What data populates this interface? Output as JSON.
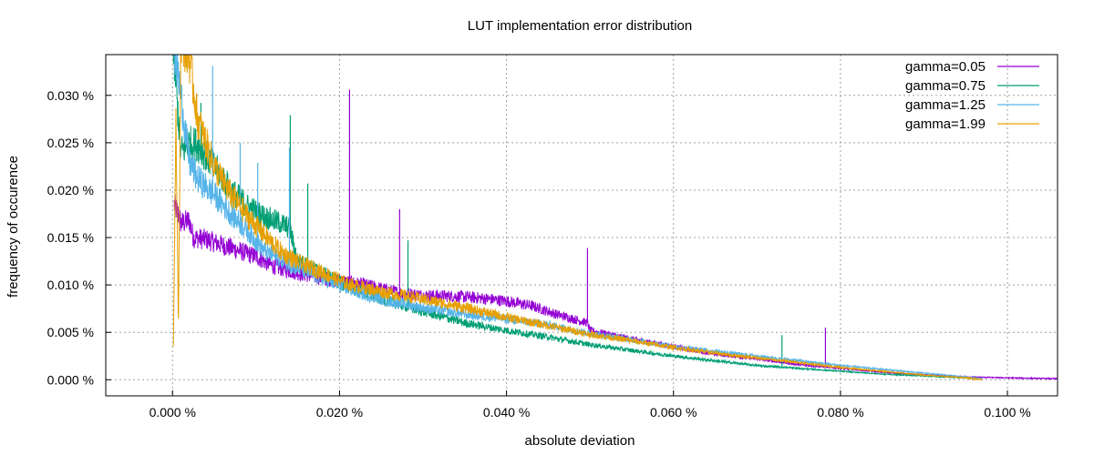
{
  "chart_data": {
    "type": "line",
    "title": "LUT implementation error distribution",
    "xlabel": "absolute deviation",
    "ylabel": "frequency of occurence",
    "xlim": [
      -0.008,
      0.106
    ],
    "ylim": [
      -0.0017,
      0.0343
    ],
    "grid": true,
    "legend_position": "top-right",
    "x_ticks": [
      {
        "value": 0.0,
        "label": "0.000 %"
      },
      {
        "value": 0.02,
        "label": "0.020 %"
      },
      {
        "value": 0.04,
        "label": "0.040 %"
      },
      {
        "value": 0.06,
        "label": "0.060 %"
      },
      {
        "value": 0.08,
        "label": "0.080 %"
      },
      {
        "value": 0.1,
        "label": "0.100 %"
      }
    ],
    "y_ticks": [
      {
        "value": 0.0,
        "label": "0.000 %"
      },
      {
        "value": 0.005,
        "label": "0.005 %"
      },
      {
        "value": 0.01,
        "label": "0.010 %"
      },
      {
        "value": 0.015,
        "label": "0.015 %"
      },
      {
        "value": 0.02,
        "label": "0.020 %"
      },
      {
        "value": 0.025,
        "label": "0.025 %"
      },
      {
        "value": 0.03,
        "label": "0.030 %"
      }
    ],
    "series": [
      {
        "name": "gamma=0.05",
        "color": "#9400d3",
        "points": [
          [
            0.0002,
            0.0185
          ],
          [
            0.0008,
            0.0172
          ],
          [
            0.001,
            0.0165
          ],
          [
            0.002,
            0.0168
          ],
          [
            0.0025,
            0.015
          ],
          [
            0.004,
            0.0148
          ],
          [
            0.006,
            0.0142
          ],
          [
            0.008,
            0.0136
          ],
          [
            0.01,
            0.013
          ],
          [
            0.012,
            0.012
          ],
          [
            0.015,
            0.0113
          ],
          [
            0.018,
            0.0107
          ],
          [
            0.021,
            0.0103
          ],
          [
            0.024,
            0.0098
          ],
          [
            0.027,
            0.0092
          ],
          [
            0.03,
            0.0089
          ],
          [
            0.034,
            0.0088
          ],
          [
            0.037,
            0.0086
          ],
          [
            0.04,
            0.0083
          ],
          [
            0.043,
            0.0078
          ],
          [
            0.046,
            0.0069
          ],
          [
            0.0497,
            0.006
          ],
          [
            0.05,
            0.0052
          ],
          [
            0.055,
            0.0043
          ],
          [
            0.06,
            0.0035
          ],
          [
            0.065,
            0.0027
          ],
          [
            0.07,
            0.0022
          ],
          [
            0.075,
            0.0016
          ],
          [
            0.08,
            0.0012
          ],
          [
            0.085,
            0.0008
          ],
          [
            0.09,
            0.0005
          ],
          [
            0.095,
            0.0003
          ],
          [
            0.1,
            0.0002
          ],
          [
            0.106,
            0.0001
          ]
        ],
        "spikes": [
          [
            0.0212,
            0.0306
          ],
          [
            0.0272,
            0.018
          ],
          [
            0.0497,
            0.0139
          ],
          [
            0.0782,
            0.0055
          ]
        ]
      },
      {
        "name": "gamma=0.75",
        "color": "#009e73",
        "points": [
          [
            0.0,
            0.036
          ],
          [
            0.0005,
            0.03
          ],
          [
            0.001,
            0.024
          ],
          [
            0.002,
            0.025
          ],
          [
            0.003,
            0.0248
          ],
          [
            0.005,
            0.0225
          ],
          [
            0.007,
            0.02
          ],
          [
            0.009,
            0.0183
          ],
          [
            0.011,
            0.0172
          ],
          [
            0.013,
            0.0165
          ],
          [
            0.014,
            0.016
          ],
          [
            0.015,
            0.0125
          ],
          [
            0.018,
            0.0112
          ],
          [
            0.021,
            0.0098
          ],
          [
            0.025,
            0.0085
          ],
          [
            0.03,
            0.0072
          ],
          [
            0.035,
            0.006
          ],
          [
            0.04,
            0.0052
          ],
          [
            0.045,
            0.0045
          ],
          [
            0.05,
            0.0037
          ],
          [
            0.055,
            0.0031
          ],
          [
            0.06,
            0.0025
          ],
          [
            0.065,
            0.002
          ],
          [
            0.07,
            0.0015
          ],
          [
            0.075,
            0.0012
          ],
          [
            0.08,
            0.0009
          ],
          [
            0.085,
            0.0006
          ],
          [
            0.09,
            0.0004
          ],
          [
            0.095,
            0.0002
          ],
          [
            0.097,
            0.0001
          ]
        ],
        "spikes": [
          [
            0.0034,
            0.0292
          ],
          [
            0.0141,
            0.0279
          ],
          [
            0.0162,
            0.0207
          ],
          [
            0.0282,
            0.0147
          ],
          [
            0.073,
            0.0047
          ]
        ]
      },
      {
        "name": "gamma=1.25",
        "color": "#56b4e9",
        "points": [
          [
            0.0002,
            0.035
          ],
          [
            0.001,
            0.03
          ],
          [
            0.002,
            0.023
          ],
          [
            0.003,
            0.0212
          ],
          [
            0.005,
            0.0195
          ],
          [
            0.007,
            0.0175
          ],
          [
            0.009,
            0.0157
          ],
          [
            0.011,
            0.0136
          ],
          [
            0.014,
            0.0122
          ],
          [
            0.017,
            0.011
          ],
          [
            0.02,
            0.0099
          ],
          [
            0.023,
            0.009
          ],
          [
            0.026,
            0.0083
          ],
          [
            0.03,
            0.0076
          ],
          [
            0.035,
            0.0069
          ],
          [
            0.04,
            0.0064
          ],
          [
            0.045,
            0.0058
          ],
          [
            0.05,
            0.0049
          ],
          [
            0.055,
            0.0042
          ],
          [
            0.06,
            0.0035
          ],
          [
            0.065,
            0.003
          ],
          [
            0.07,
            0.0025
          ],
          [
            0.075,
            0.002
          ],
          [
            0.08,
            0.0015
          ],
          [
            0.085,
            0.0011
          ],
          [
            0.09,
            0.0007
          ],
          [
            0.095,
            0.0003
          ],
          [
            0.097,
            0.0001
          ]
        ],
        "spikes": [
          [
            0.0048,
            0.0331
          ],
          [
            0.0081,
            0.025
          ],
          [
            0.0102,
            0.0229
          ],
          [
            0.014,
            0.0245
          ]
        ]
      },
      {
        "name": "gamma=1.99",
        "color": "#e69f00",
        "points": [
          [
            0.0001,
            0.0035
          ],
          [
            0.0004,
            0.028
          ],
          [
            0.0007,
            0.0055
          ],
          [
            0.001,
            0.036
          ],
          [
            0.002,
            0.034
          ],
          [
            0.003,
            0.0275
          ],
          [
            0.005,
            0.0225
          ],
          [
            0.007,
            0.0195
          ],
          [
            0.009,
            0.0172
          ],
          [
            0.011,
            0.0153
          ],
          [
            0.013,
            0.0135
          ],
          [
            0.015,
            0.0124
          ],
          [
            0.018,
            0.0113
          ],
          [
            0.021,
            0.0101
          ],
          [
            0.025,
            0.0093
          ],
          [
            0.03,
            0.0085
          ],
          [
            0.035,
            0.0076
          ],
          [
            0.04,
            0.0066
          ],
          [
            0.045,
            0.0057
          ],
          [
            0.05,
            0.0048
          ],
          [
            0.055,
            0.0041
          ],
          [
            0.06,
            0.0034
          ],
          [
            0.065,
            0.0028
          ],
          [
            0.07,
            0.0023
          ],
          [
            0.075,
            0.0018
          ],
          [
            0.08,
            0.0013
          ],
          [
            0.085,
            0.0009
          ],
          [
            0.09,
            0.0005
          ],
          [
            0.095,
            0.0002
          ],
          [
            0.097,
            0.0
          ]
        ],
        "spikes": []
      }
    ]
  }
}
